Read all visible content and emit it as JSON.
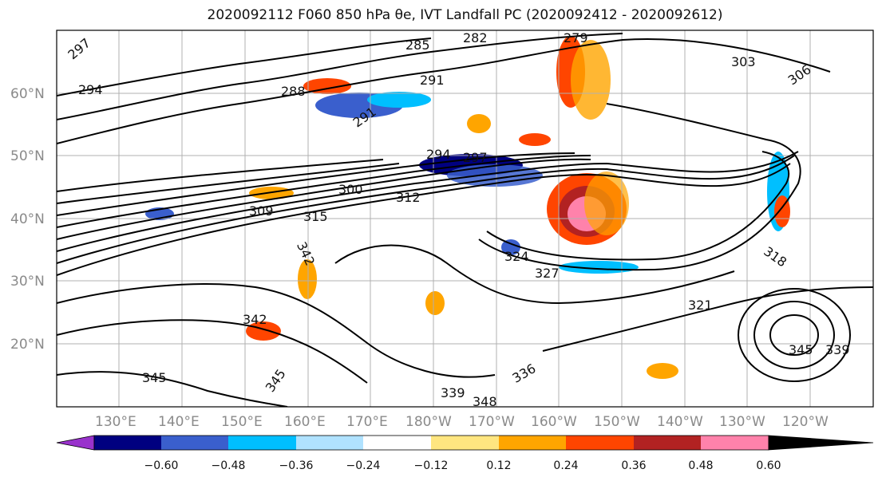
{
  "title": "2020092112 F060 850 hPa θe, IVT Landfall PC (2020092412 - 2020092612)",
  "lat_labels": [
    "60°N",
    "50°N",
    "40°N",
    "30°N",
    "20°N"
  ],
  "lon_labels": [
    "130°E",
    "140°E",
    "150°E",
    "160°E",
    "170°E",
    "180°W",
    "170°W",
    "160°W",
    "150°W",
    "140°W",
    "130°W",
    "120°W"
  ],
  "contour_labels": {
    "c297": "297",
    "c294": "294",
    "c285": "285",
    "c282": "282",
    "c279": "279",
    "c303": "303",
    "c306": "306",
    "c288": "288",
    "c291": "291",
    "c291b": "291",
    "c294b": "294",
    "c297b": "297",
    "c300": "300",
    "c309": "309",
    "c312": "312",
    "c315": "315",
    "c324": "324",
    "c327": "327",
    "c321": "321",
    "c318": "318",
    "c342": "342",
    "c345a": "345",
    "c345b": "345",
    "c345c": "345",
    "c339a": "339",
    "c339b": "339",
    "c336": "336",
    "c348": "348",
    "c342b": "342"
  },
  "colorbar": {
    "ticks": [
      "−0.60",
      "−0.48",
      "−0.36",
      "−0.24",
      "−0.12",
      "0.12",
      "0.24",
      "0.36",
      "0.48",
      "0.60"
    ],
    "colors": [
      "#9932cc",
      "#000080",
      "#3a5fcd",
      "#00bfff",
      "#b0e2ff",
      "#ffffff",
      "#ffe680",
      "#ffa500",
      "#ff4500",
      "#b22222",
      "#ff82ab"
    ]
  }
}
